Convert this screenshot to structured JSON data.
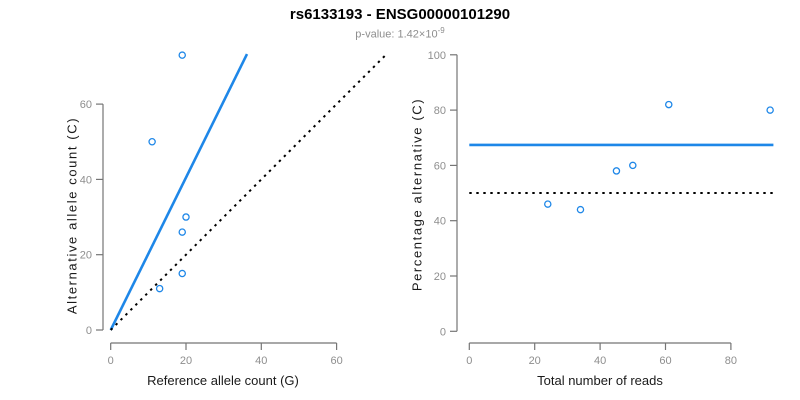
{
  "header": {
    "title": "rs6133193 - ENSG00000101290",
    "subtitle_prefix": "p-value: 1.42×10",
    "subtitle_exponent": "-9"
  },
  "colors": {
    "accent_blue": "#1e87e8",
    "dotted_black": "#000000",
    "axis_gray": "#757575",
    "tick_label_gray": "#8e8e8e"
  },
  "chart_data": [
    {
      "type": "scatter",
      "xlabel": "Reference allele count (G)",
      "ylabel": "Alternative allele count (C)",
      "xticks": [
        0,
        20,
        40,
        60
      ],
      "yticks": [
        0,
        20,
        40,
        60
      ],
      "xlim": [
        0,
        73
      ],
      "ylim": [
        0,
        74
      ],
      "grid": false,
      "legend": "none",
      "points": [
        [
          11,
          50
        ],
        [
          13,
          11
        ],
        [
          19,
          15
        ],
        [
          19,
          26
        ],
        [
          19,
          73
        ],
        [
          20,
          30
        ]
      ],
      "lines": [
        {
          "name": "regression-line",
          "style": "solid",
          "color_key": "accent_blue",
          "x1": 0,
          "y1": 0,
          "x2": 36.2,
          "y2": 73.3
        },
        {
          "name": "identity-line",
          "style": "dotted",
          "color_key": "dotted_black",
          "x1": 0,
          "y1": 0,
          "x2": 73,
          "y2": 73
        }
      ]
    },
    {
      "type": "scatter",
      "xlabel": "Total number of reads",
      "ylabel": "Percentage alternative (C)",
      "xticks": [
        0,
        20,
        40,
        60,
        80
      ],
      "yticks": [
        0,
        20,
        40,
        60,
        80,
        100
      ],
      "xlim": [
        0,
        93
      ],
      "ylim": [
        0,
        100
      ],
      "grid": false,
      "legend": "none",
      "points": [
        [
          24,
          46
        ],
        [
          34,
          44
        ],
        [
          45,
          58
        ],
        [
          50,
          60
        ],
        [
          61,
          82
        ],
        [
          92,
          80
        ]
      ],
      "lines": [
        {
          "name": "mean-percentage-line",
          "style": "solid",
          "color_key": "accent_blue",
          "x1": 0,
          "y1": 67.4,
          "x2": 93,
          "y2": 67.4
        },
        {
          "name": "expected-percentage-line",
          "style": "dotted",
          "color_key": "dotted_black",
          "x1": 0,
          "y1": 50,
          "x2": 93,
          "y2": 50
        }
      ]
    }
  ]
}
